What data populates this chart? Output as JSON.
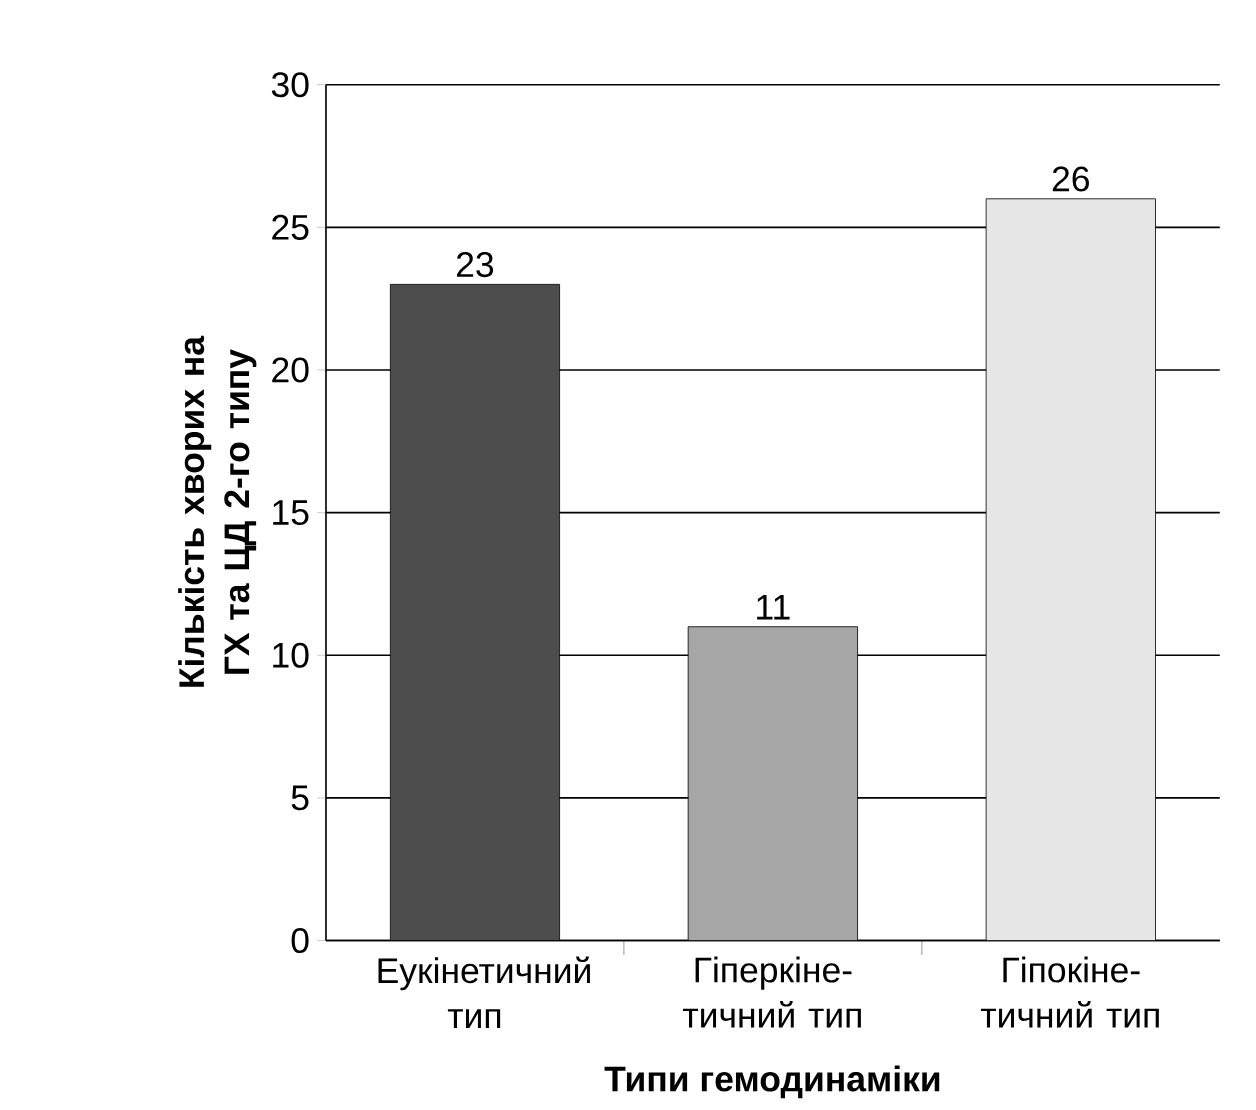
{
  "chart_data": {
    "type": "bar",
    "xlabel": "Типи гемодинаміки",
    "ylabel": "Кількість хворих на ГХ та ЦД 2-го типу",
    "categories": [
      "Еукінетичний тип",
      "Гіперкіне-тичний тип",
      "Гіпокіне-тичний тип"
    ],
    "values": [
      23,
      11,
      26
    ],
    "colors": [
      "#4d4d4d",
      "#a6a6a6",
      "#e6e6e6"
    ],
    "ylim": [
      0,
      30
    ],
    "yticks": [
      0,
      5,
      10,
      15,
      20,
      25,
      30
    ],
    "grid": "y",
    "data_labels": true
  }
}
